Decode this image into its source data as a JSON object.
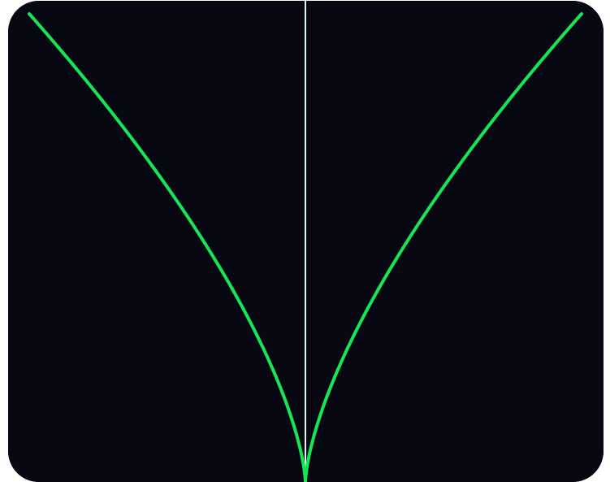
{
  "theme": {
    "background": "#080812",
    "curve_color": "#14e656",
    "axis_color": "#d8f6ec"
  },
  "visualizer": {
    "shape": "symmetric cusp curve",
    "has_center_line": true
  }
}
